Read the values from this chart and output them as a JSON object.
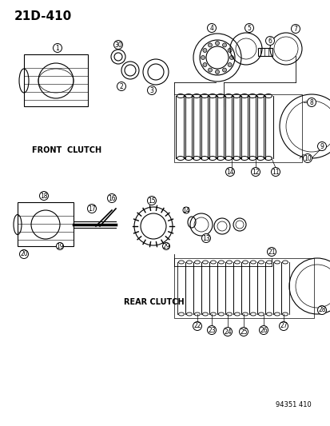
{
  "title": "21D-410",
  "bg_color": "#ffffff",
  "line_color": "#000000",
  "label_color": "#000000",
  "front_clutch_label": "FRONT  CLUTCH",
  "rear_clutch_label": "REAR CLUTCH",
  "part_number": "94351 410",
  "fig_width": 4.14,
  "fig_height": 5.33,
  "dpi": 100
}
